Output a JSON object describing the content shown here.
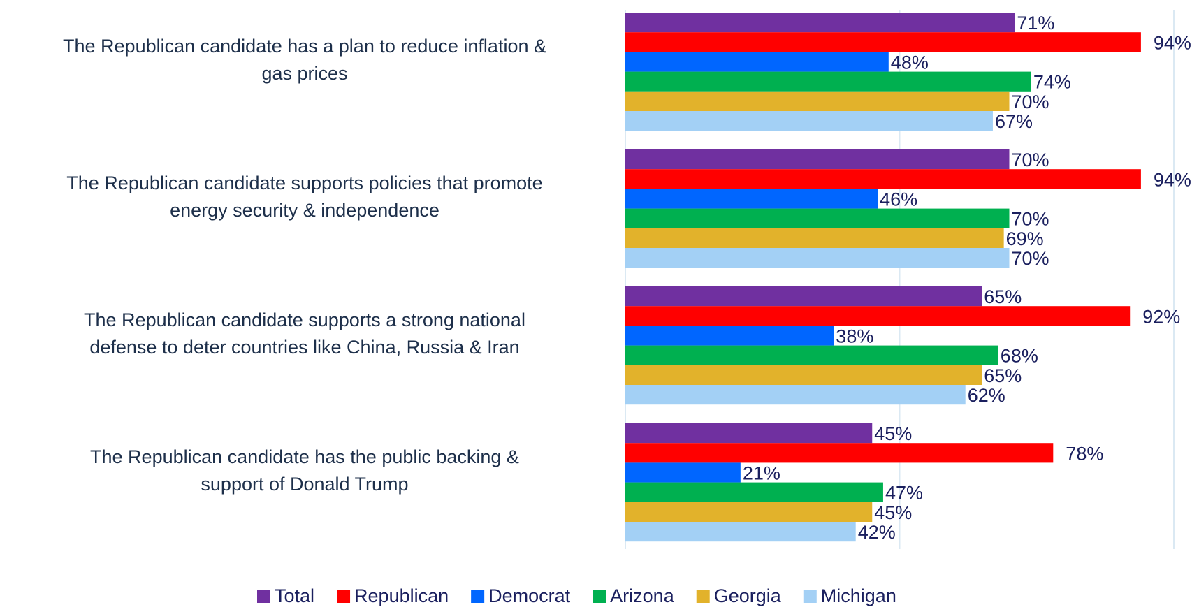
{
  "chart_data": {
    "type": "bar",
    "orientation": "horizontal",
    "categories": [
      [
        "The Republican candidate has a plan to reduce inflation &",
        "gas prices"
      ],
      [
        "The Republican candidate supports policies that promote",
        "energy security & independence"
      ],
      [
        "The Republican candidate supports a strong national",
        "defense to deter countries like China, Russia & Iran"
      ],
      [
        "The Republican candidate has the public backing &",
        "support of Donald Trump"
      ]
    ],
    "series": [
      {
        "name": "Total",
        "color": "#7030a0",
        "values": [
          71,
          70,
          65,
          45
        ]
      },
      {
        "name": "Republican",
        "color": "#ff0000",
        "values": [
          94,
          94,
          92,
          78
        ]
      },
      {
        "name": "Democrat",
        "color": "#0066ff",
        "values": [
          48,
          46,
          38,
          21
        ]
      },
      {
        "name": "Arizona",
        "color": "#00b050",
        "values": [
          74,
          70,
          68,
          47
        ]
      },
      {
        "name": "Georgia",
        "color": "#e2b22b",
        "values": [
          70,
          69,
          65,
          45
        ]
      },
      {
        "name": "Michigan",
        "color": "#a3d0f5",
        "values": [
          67,
          70,
          62,
          42
        ]
      }
    ],
    "value_suffix": "%",
    "xlim": [
      0,
      100
    ],
    "gridlines": [
      0,
      50,
      100
    ],
    "legend_position": "bottom"
  }
}
